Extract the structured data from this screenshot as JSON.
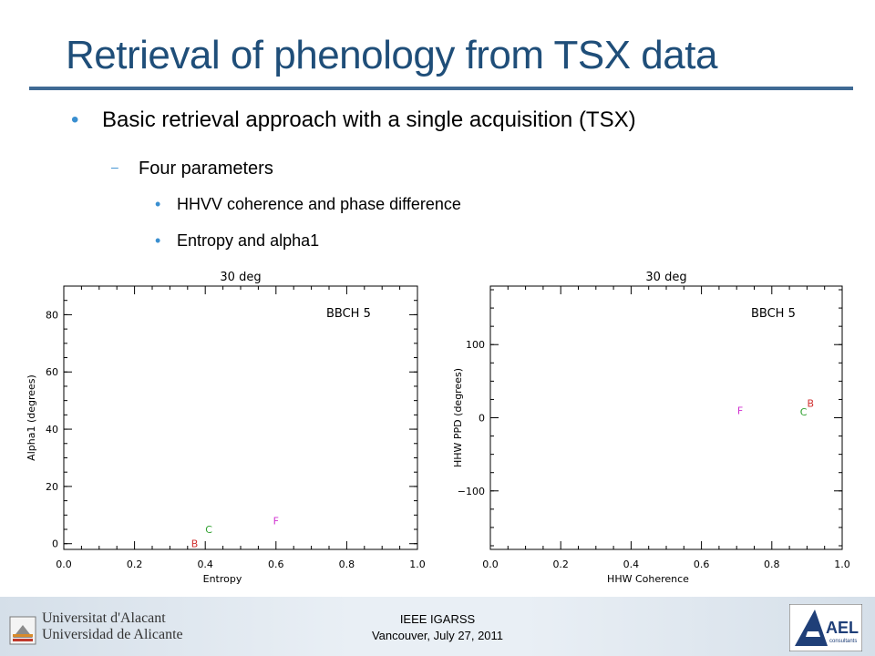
{
  "slide": {
    "title": "Retrieval of phenology from TSX data",
    "bullets": {
      "level1": "Basic retrieval approach with a single acquisition (TSX)",
      "level2": "Four parameters",
      "level3": [
        "HHVV coherence and phase difference",
        "Entropy and alpha1"
      ]
    },
    "markers": {
      "level1": "•",
      "level2": "–",
      "level3": "•"
    }
  },
  "footer": {
    "university_line1": "Universitat d'Alacant",
    "university_line2": "Universidad de Alicante",
    "conference_line1": "IEEE IGARSS",
    "conference_line2": "Vancouver, July 27, 2011",
    "ael_logo_text": "AEL",
    "ael_logo_sub": "consultants"
  },
  "colors": {
    "title": "#1f4e79",
    "rule": "#3f6a94",
    "bullet": "#3a8fd0",
    "F": "#d030d0",
    "C": "#2ea02e",
    "B": "#d03030"
  },
  "chart_data": [
    {
      "type": "scatter",
      "title": "30 deg",
      "annotation": "BBCH   5",
      "xlabel": "Entropy",
      "ylabel": "Alpha1 (degrees)",
      "xlim": [
        0.0,
        1.0
      ],
      "ylim": [
        -2,
        90
      ],
      "xticks": [
        "0.0",
        "0.2",
        "0.4",
        "0.6",
        "0.8",
        "1.0"
      ],
      "xtick_values": [
        0.0,
        0.2,
        0.4,
        0.6,
        0.8,
        1.0
      ],
      "yticks": [
        "0",
        "20",
        "40",
        "60",
        "80"
      ],
      "ytick_values": [
        0,
        20,
        40,
        60,
        80
      ],
      "grid": false,
      "points": [
        {
          "label": "B",
          "x": 0.37,
          "y": 0.0,
          "color": "#d03030"
        },
        {
          "label": "C",
          "x": 0.41,
          "y": 5.0,
          "color": "#2ea02e"
        },
        {
          "label": "F",
          "x": 0.6,
          "y": 8.0,
          "color": "#d030d0"
        }
      ]
    },
    {
      "type": "scatter",
      "title": "30 deg",
      "annotation": "BBCH   5",
      "xlabel": "HHW Coherence",
      "ylabel": "HHW PPD (degrees)",
      "xlim": [
        0.0,
        1.0
      ],
      "ylim": [
        -180,
        180
      ],
      "xticks": [
        "0.0",
        "0.2",
        "0.4",
        "0.6",
        "0.8",
        "1.0"
      ],
      "xtick_values": [
        0.0,
        0.2,
        0.4,
        0.6,
        0.8,
        1.0
      ],
      "yticks": [
        "100",
        "0",
        "−100"
      ],
      "ytick_values": [
        100,
        0,
        -100
      ],
      "grid": false,
      "points": [
        {
          "label": "F",
          "x": 0.71,
          "y": 10.0,
          "color": "#d030d0"
        },
        {
          "label": "C",
          "x": 0.89,
          "y": 8.0,
          "color": "#2ea02e"
        },
        {
          "label": "B",
          "x": 0.91,
          "y": 20.0,
          "color": "#d03030"
        }
      ]
    }
  ]
}
